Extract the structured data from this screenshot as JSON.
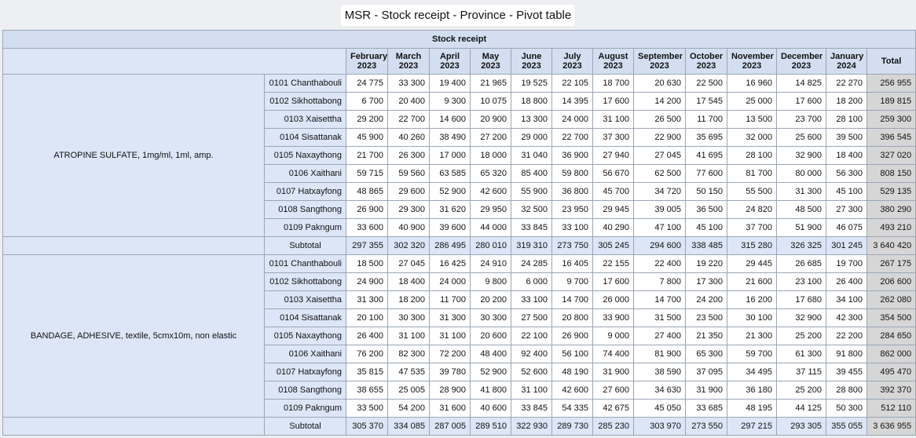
{
  "window": {
    "title": "MSR - Stock receipt - Province - Pivot table"
  },
  "table": {
    "header_group": "Stock receipt",
    "months": [
      [
        "February",
        "2023"
      ],
      [
        "March",
        "2023"
      ],
      [
        "April",
        "2023"
      ],
      [
        "May",
        "2023"
      ],
      [
        "June",
        "2023"
      ],
      [
        "July",
        "2023"
      ],
      [
        "August",
        "2023"
      ],
      [
        "September",
        "2023"
      ],
      [
        "October",
        "2023"
      ],
      [
        "November",
        "2023"
      ],
      [
        "December",
        "2023"
      ],
      [
        "January",
        "2024"
      ]
    ],
    "total_label": "Total",
    "subtotal_label": "Subtotal",
    "groups": [
      {
        "item": "ATROPINE SULFATE, 1mg/ml, 1ml, amp.",
        "rows": [
          {
            "province": "0101 Chanthabouli",
            "values": [
              "24 775",
              "33 300",
              "19 400",
              "21 965",
              "19 525",
              "22 105",
              "18 700",
              "20 630",
              "22 500",
              "16 960",
              "14 825",
              "22 270"
            ],
            "total": "256 955"
          },
          {
            "province": "0102 Sikhottabong",
            "values": [
              "6 700",
              "20 400",
              "9 300",
              "10 075",
              "18 800",
              "14 395",
              "17 600",
              "14 200",
              "17 545",
              "25 000",
              "17 600",
              "18 200"
            ],
            "total": "189 815"
          },
          {
            "province": "0103 Xaisettha",
            "values": [
              "29 200",
              "22 700",
              "14 600",
              "20 900",
              "13 300",
              "24 000",
              "31 100",
              "26 500",
              "11 700",
              "13 500",
              "23 700",
              "28 100"
            ],
            "total": "259 300"
          },
          {
            "province": "0104 Sisattanak",
            "values": [
              "45 900",
              "40 260",
              "38 490",
              "27 200",
              "29 000",
              "22 700",
              "37 300",
              "22 900",
              "35 695",
              "32 000",
              "25 600",
              "39 500"
            ],
            "total": "396 545"
          },
          {
            "province": "0105 Naxaythong",
            "values": [
              "21 700",
              "26 300",
              "17 000",
              "18 000",
              "31 040",
              "36 900",
              "27 940",
              "27 045",
              "41 695",
              "28 100",
              "32 900",
              "18 400"
            ],
            "total": "327 020"
          },
          {
            "province": "0106 Xaithani",
            "values": [
              "59 715",
              "59 560",
              "63 585",
              "65 320",
              "85 400",
              "59 800",
              "56 670",
              "62 500",
              "77 600",
              "81 700",
              "80 000",
              "56 300"
            ],
            "total": "808 150"
          },
          {
            "province": "0107 Hatxayfong",
            "values": [
              "48 865",
              "29 600",
              "52 900",
              "42 600",
              "55 900",
              "36 800",
              "45 700",
              "34 720",
              "50 150",
              "55 500",
              "31 300",
              "45 100"
            ],
            "total": "529 135"
          },
          {
            "province": "0108 Sangthong",
            "values": [
              "26 900",
              "29 300",
              "31 620",
              "29 950",
              "32 500",
              "23 950",
              "29 945",
              "39 005",
              "36 500",
              "24 820",
              "48 500",
              "27 300"
            ],
            "total": "380 290"
          },
          {
            "province": "0109 Pakngum",
            "values": [
              "33 600",
              "40 900",
              "39 600",
              "44 000",
              "33 845",
              "33 100",
              "40 290",
              "47 100",
              "45 100",
              "37 700",
              "51 900",
              "46 075"
            ],
            "total": "493 210"
          }
        ],
        "subtotal": {
          "values": [
            "297 355",
            "302 320",
            "286 495",
            "280 010",
            "319 310",
            "273 750",
            "305 245",
            "294 600",
            "338 485",
            "315 280",
            "326 325",
            "301 245"
          ],
          "total": "3 640 420"
        }
      },
      {
        "item": "BANDAGE, ADHESIVE, textile, 5cmx10m, non elastic",
        "rows": [
          {
            "province": "0101 Chanthabouli",
            "values": [
              "18 500",
              "27 045",
              "16 425",
              "24 910",
              "24 285",
              "16 405",
              "22 155",
              "22 400",
              "19 220",
              "29 445",
              "26 685",
              "19 700"
            ],
            "total": "267 175"
          },
          {
            "province": "0102 Sikhottabong",
            "values": [
              "24 900",
              "18 400",
              "24 000",
              "9 800",
              "6 000",
              "9 700",
              "17 600",
              "7 800",
              "17 300",
              "21 600",
              "23 100",
              "26 400"
            ],
            "total": "206 600"
          },
          {
            "province": "0103 Xaisettha",
            "values": [
              "31 300",
              "18 200",
              "11 700",
              "20 200",
              "33 100",
              "14 700",
              "26 000",
              "14 700",
              "24 200",
              "16 200",
              "17 680",
              "34 100"
            ],
            "total": "262 080"
          },
          {
            "province": "0104 Sisattanak",
            "values": [
              "20 100",
              "30 300",
              "31 300",
              "30 300",
              "27 500",
              "20 800",
              "33 900",
              "31 500",
              "23 500",
              "30 100",
              "32 900",
              "42 300"
            ],
            "total": "354 500"
          },
          {
            "province": "0105 Naxaythong",
            "values": [
              "26 400",
              "31 100",
              "31 100",
              "20 600",
              "22 100",
              "26 900",
              "9 000",
              "27 400",
              "21 350",
              "21 300",
              "25 200",
              "22 200"
            ],
            "total": "284 650"
          },
          {
            "province": "0106 Xaithani",
            "values": [
              "76 200",
              "82 300",
              "72 200",
              "48 400",
              "92 400",
              "56 100",
              "74 400",
              "81 900",
              "65 300",
              "59 700",
              "61 300",
              "91 800"
            ],
            "total": "862 000"
          },
          {
            "province": "0107 Hatxayfong",
            "values": [
              "35 815",
              "47 535",
              "39 780",
              "52 900",
              "52 600",
              "48 190",
              "31 900",
              "38 590",
              "37 095",
              "34 495",
              "37 115",
              "39 455"
            ],
            "total": "495 470"
          },
          {
            "province": "0108 Sangthong",
            "values": [
              "38 655",
              "25 005",
              "28 900",
              "41 800",
              "31 100",
              "42 600",
              "27 600",
              "34 630",
              "31 900",
              "36 180",
              "25 200",
              "28 800"
            ],
            "total": "392 370"
          },
          {
            "province": "0109 Pakngum",
            "values": [
              "33 500",
              "54 200",
              "31 600",
              "40 600",
              "33 845",
              "54 335",
              "42 675",
              "45 050",
              "33 685",
              "48 195",
              "44 125",
              "50 300"
            ],
            "total": "512 110"
          }
        ],
        "subtotal": {
          "values": [
            "305 370",
            "334 085",
            "287 005",
            "289 510",
            "322 930",
            "289 730",
            "285 230",
            "303 970",
            "273 550",
            "297 215",
            "293 305",
            "355 055"
          ],
          "total": "3 636 955"
        }
      }
    ]
  }
}
